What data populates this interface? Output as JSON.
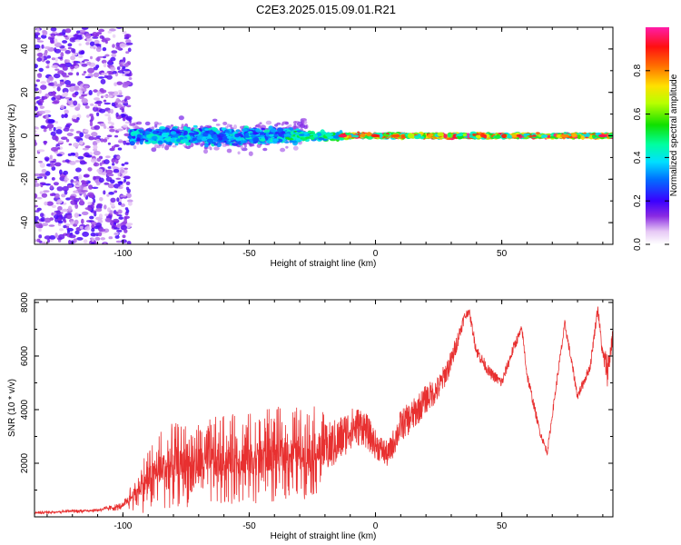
{
  "title": "C2E3.2025.015.09.01.R21",
  "colorbar": {
    "label": "Normalized spectral amplitude",
    "ticks": [
      "0.0",
      "0.2",
      "0.4",
      "0.6",
      "0.8"
    ],
    "range": [
      0,
      1
    ]
  },
  "chart_data": [
    {
      "type": "heatmap",
      "name": "spectrogram",
      "xlabel": "Height of straight line (km)",
      "ylabel": "Frequency (Hz)",
      "xlim": [
        -135,
        94
      ],
      "ylim": [
        -50,
        50
      ],
      "x_ticks": [
        -100,
        -50,
        0,
        50
      ],
      "y_ticks": [
        -40,
        -20,
        0,
        20,
        40
      ],
      "x_tick_labels": [
        "-100",
        "-50",
        "0",
        "50"
      ],
      "y_tick_labels": [
        "-40",
        "-20",
        "0",
        "20",
        "40"
      ],
      "grid": false,
      "regions": [
        {
          "x_range": [
            -135,
            -97
          ],
          "freq_spread": [
            -50,
            50
          ],
          "amplitude": [
            0.05,
            0.2
          ],
          "description_color": "purple noise"
        },
        {
          "x_range": [
            -97,
            -30
          ],
          "freq_center": 0,
          "freq_width": 8,
          "amplitude": [
            0.2,
            0.45
          ]
        },
        {
          "x_range": [
            -35,
            -13
          ],
          "freq_center": 0,
          "freq_width": 4,
          "amplitude": [
            0.3,
            0.55
          ]
        },
        {
          "x_range": [
            -13,
            94
          ],
          "freq_center": 0,
          "freq_width": 2,
          "amplitude": [
            0.35,
            1.0
          ]
        }
      ],
      "peaks": [
        {
          "x": -13,
          "amplitude": 0.95
        },
        {
          "x": 0,
          "amplitude": 0.9
        },
        {
          "x": 8,
          "amplitude": 0.85
        },
        {
          "x": 75,
          "amplitude": 0.8
        },
        {
          "x": 90,
          "amplitude": 0.95
        }
      ]
    },
    {
      "type": "line",
      "name": "snr",
      "xlabel": "Height of straight line (km)",
      "ylabel": "SNR (10 * v/v)",
      "xlim": [
        -135,
        94
      ],
      "ylim": [
        0,
        8100
      ],
      "x_ticks": [
        -100,
        -50,
        0,
        50
      ],
      "y_ticks": [
        2000,
        4000,
        6000,
        8000
      ],
      "x_tick_labels": [
        "-100",
        "-50",
        "0",
        "50"
      ],
      "y_tick_labels": [
        "2000",
        "4000",
        "6000",
        "8000"
      ],
      "grid": false,
      "line_color": "#e83030",
      "envelope_x": [
        -135,
        -110,
        -100,
        -95,
        -90,
        -85,
        -80,
        -70,
        -60,
        -50,
        -40,
        -30,
        -20,
        -15,
        -10,
        -5,
        0,
        5,
        10,
        15,
        20,
        25,
        30,
        35,
        37,
        40,
        45,
        50,
        55,
        58,
        60,
        65,
        68,
        72,
        75,
        80,
        85,
        88,
        90,
        92,
        94
      ],
      "envelope_y": [
        150,
        250,
        400,
        900,
        1400,
        1800,
        1900,
        2000,
        2100,
        2200,
        2300,
        2400,
        2500,
        2800,
        3300,
        3400,
        2700,
        2300,
        3400,
        3800,
        4400,
        4800,
        5800,
        7400,
        7700,
        6200,
        5400,
        5000,
        6400,
        7000,
        5300,
        3200,
        2400,
        5200,
        7200,
        4500,
        5600,
        7800,
        6000,
        5500,
        6800
      ],
      "noise_amplitude_y": [
        60,
        80,
        150,
        700,
        1300,
        1500,
        1600,
        1600,
        1700,
        1700,
        1800,
        1800,
        1600,
        1500,
        1300,
        1200,
        900,
        800,
        1000,
        1000,
        900,
        800,
        700,
        350,
        250,
        400,
        350,
        350,
        350,
        300,
        350,
        250,
        200,
        300,
        300,
        300,
        300,
        350,
        500,
        1200,
        400
      ]
    }
  ]
}
